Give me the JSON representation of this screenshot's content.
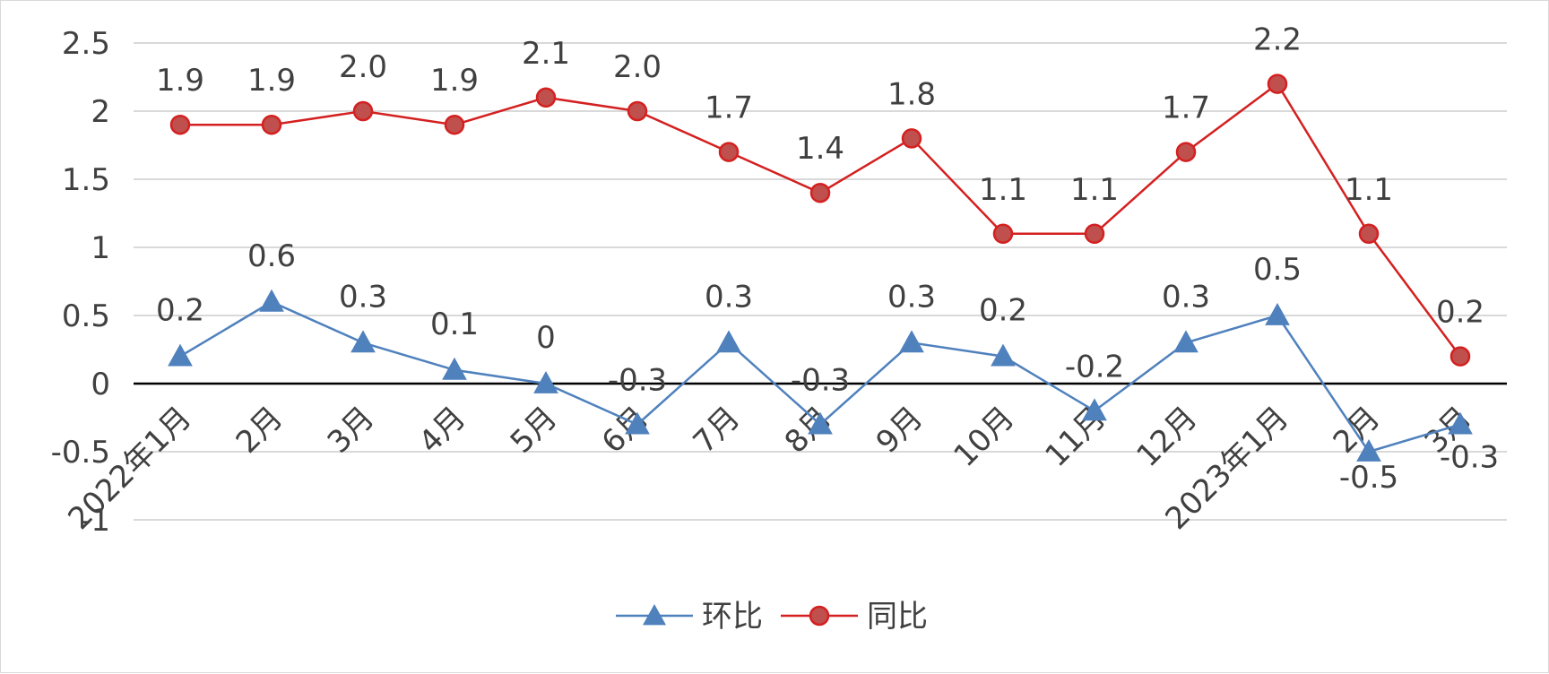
{
  "chart_data": {
    "type": "line",
    "categories": [
      "2022年1月",
      "2月",
      "3月",
      "4月",
      "5月",
      "6月",
      "7月",
      "8月",
      "9月",
      "10月",
      "11月",
      "12月",
      "2023年1月",
      "2月",
      "3月"
    ],
    "ylim": [
      -1,
      2.5
    ],
    "yticks": [
      "2.5",
      "2",
      "1.5",
      "1",
      "0.5",
      "0",
      "-0.5",
      "-1"
    ],
    "grid": true,
    "legend_position": "bottom",
    "series": [
      {
        "name": "环比",
        "color": "#4f81bd",
        "marker": "triangle",
        "values": [
          0.2,
          0.6,
          0.3,
          0.1,
          0,
          -0.3,
          0.3,
          -0.3,
          0.3,
          0.2,
          -0.2,
          0.3,
          0.5,
          -0.5,
          -0.3
        ],
        "labels": [
          "0.2",
          "0.6",
          "0.3",
          "0.1",
          "0",
          "-0.3",
          "0.3",
          "-0.3",
          "0.3",
          "0.2",
          "-0.2",
          "0.3",
          "0.5",
          "-0.5",
          "-0.3"
        ]
      },
      {
        "name": "同比",
        "color": "#c0504d",
        "line_color": "#d42020",
        "marker": "circle",
        "values": [
          1.9,
          1.9,
          2.0,
          1.9,
          2.1,
          2.0,
          1.7,
          1.4,
          1.8,
          1.1,
          1.1,
          1.7,
          2.2,
          1.1,
          0.2
        ],
        "labels": [
          "1.9",
          "1.9",
          "2.0",
          "1.9",
          "2.1",
          "2.0",
          "1.7",
          "1.4",
          "1.8",
          "1.1",
          "1.1",
          "1.7",
          "2.2",
          "1.1",
          "0.2"
        ]
      }
    ]
  }
}
